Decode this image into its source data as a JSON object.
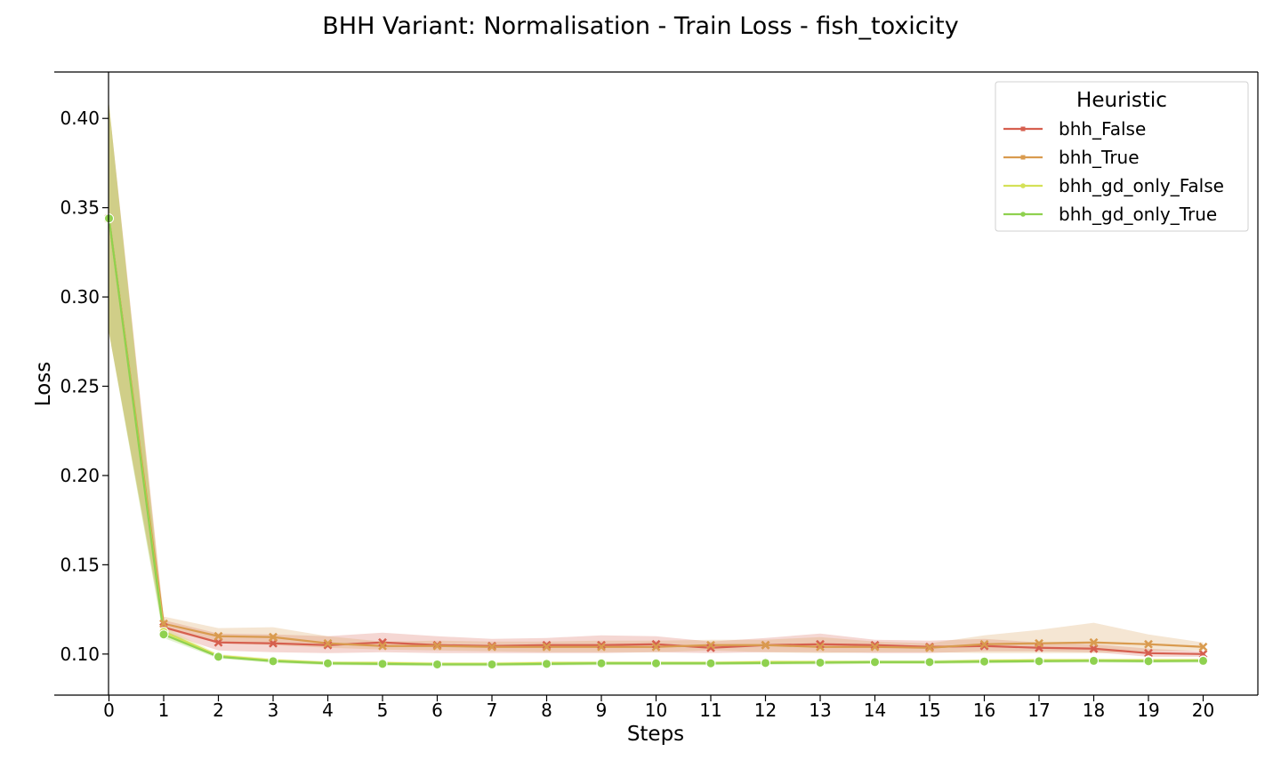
{
  "chart_data": {
    "type": "line",
    "title": "BHH Variant: Normalisation - Train Loss - fish_toxicity",
    "xlabel": "Steps",
    "ylabel": "Loss",
    "xlim": [
      -1,
      21
    ],
    "ylim": [
      0.077,
      0.426
    ],
    "x": [
      0,
      1,
      2,
      3,
      4,
      5,
      6,
      7,
      8,
      9,
      10,
      11,
      12,
      13,
      14,
      15,
      16,
      17,
      18,
      19,
      20
    ],
    "x_ticks": [
      "0",
      "1",
      "2",
      "3",
      "4",
      "5",
      "6",
      "7",
      "8",
      "9",
      "10",
      "11",
      "12",
      "13",
      "14",
      "15",
      "16",
      "17",
      "18",
      "19",
      "20"
    ],
    "y_ticks": [
      0.1,
      0.15,
      0.2,
      0.25,
      0.3,
      0.35,
      0.4
    ],
    "y_tick_labels": [
      "0.10",
      "0.15",
      "0.20",
      "0.25",
      "0.30",
      "0.35",
      "0.40"
    ],
    "grid": false,
    "legend": {
      "title": "Heuristic",
      "placement": "top-right"
    },
    "series": [
      {
        "name": "bhh_False",
        "color": "#d65f4f",
        "marker": "x",
        "values": [
          0.344,
          0.115,
          0.1065,
          0.106,
          0.105,
          0.1065,
          0.105,
          0.1045,
          0.105,
          0.105,
          0.1055,
          0.1035,
          0.105,
          0.1055,
          0.105,
          0.104,
          0.1045,
          0.1035,
          0.103,
          0.1005,
          0.1
        ],
        "band_lower": [
          0.28,
          0.112,
          0.102,
          0.101,
          0.1005,
          0.101,
          0.1005,
          0.1005,
          0.1005,
          0.1005,
          0.101,
          0.1005,
          0.101,
          0.101,
          0.1005,
          0.1005,
          0.1015,
          0.1015,
          0.101,
          0.0985,
          0.0985
        ],
        "band_upper": [
          0.408,
          0.119,
          0.1115,
          0.111,
          0.11,
          0.112,
          0.11,
          0.1085,
          0.109,
          0.1105,
          0.11,
          0.107,
          0.109,
          0.1115,
          0.108,
          0.1075,
          0.1085,
          0.1065,
          0.1055,
          0.103,
          0.1015
        ]
      },
      {
        "name": "bhh_True",
        "color": "#d99b4f",
        "marker": "x",
        "values": [
          0.344,
          0.117,
          0.11,
          0.1095,
          0.106,
          0.1045,
          0.1045,
          0.104,
          0.104,
          0.104,
          0.104,
          0.105,
          0.105,
          0.104,
          0.104,
          0.1035,
          0.1055,
          0.106,
          0.1065,
          0.1055,
          0.104
        ],
        "band_lower": [
          0.28,
          0.114,
          0.106,
          0.105,
          0.1035,
          0.1025,
          0.102,
          0.1015,
          0.101,
          0.101,
          0.101,
          0.102,
          0.101,
          0.1005,
          0.101,
          0.101,
          0.1005,
          0.1005,
          0.1005,
          0.1015,
          0.102
        ],
        "band_upper": [
          0.408,
          0.121,
          0.1145,
          0.115,
          0.11,
          0.107,
          0.1075,
          0.107,
          0.107,
          0.1075,
          0.1075,
          0.108,
          0.108,
          0.1095,
          0.107,
          0.106,
          0.1105,
          0.1135,
          0.1175,
          0.111,
          0.1065
        ]
      },
      {
        "name": "bhh_gd_only_False",
        "color": "#d4e157",
        "marker": "o",
        "values": [
          0.344,
          0.1125,
          0.099,
          0.0965,
          0.095,
          0.095,
          0.0945,
          0.0945,
          0.095,
          0.095,
          0.095,
          0.095,
          0.0955,
          0.0955,
          0.0955,
          0.0955,
          0.0962,
          0.0965,
          0.0965,
          0.0965,
          0.0965
        ],
        "band_lower": [
          0.28,
          0.11,
          0.098,
          0.0955,
          0.094,
          0.094,
          0.0935,
          0.0935,
          0.094,
          0.094,
          0.094,
          0.094,
          0.0945,
          0.0945,
          0.0945,
          0.0945,
          0.095,
          0.0955,
          0.0955,
          0.0955,
          0.0955
        ],
        "band_upper": [
          0.408,
          0.115,
          0.1,
          0.0975,
          0.096,
          0.096,
          0.0955,
          0.0955,
          0.096,
          0.096,
          0.096,
          0.096,
          0.0965,
          0.0965,
          0.0965,
          0.0965,
          0.0972,
          0.0975,
          0.0975,
          0.0975,
          0.0975
        ]
      },
      {
        "name": "bhh_gd_only_True",
        "color": "#8fd14f",
        "marker": "o",
        "values": [
          0.344,
          0.111,
          0.0985,
          0.096,
          0.0948,
          0.0945,
          0.0942,
          0.0942,
          0.0945,
          0.0948,
          0.0948,
          0.0948,
          0.095,
          0.0952,
          0.0955,
          0.0955,
          0.0958,
          0.096,
          0.0962,
          0.096,
          0.0962
        ],
        "band_lower": [
          0.28,
          0.109,
          0.0975,
          0.095,
          0.0938,
          0.0935,
          0.0932,
          0.0932,
          0.0935,
          0.0938,
          0.0938,
          0.0938,
          0.094,
          0.0942,
          0.0945,
          0.0945,
          0.0948,
          0.095,
          0.0952,
          0.095,
          0.0952
        ],
        "band_upper": [
          0.408,
          0.1135,
          0.0995,
          0.097,
          0.0958,
          0.0955,
          0.0952,
          0.0952,
          0.0955,
          0.0958,
          0.0958,
          0.0958,
          0.096,
          0.0962,
          0.0965,
          0.0965,
          0.0968,
          0.097,
          0.0972,
          0.097,
          0.0972
        ]
      }
    ]
  }
}
